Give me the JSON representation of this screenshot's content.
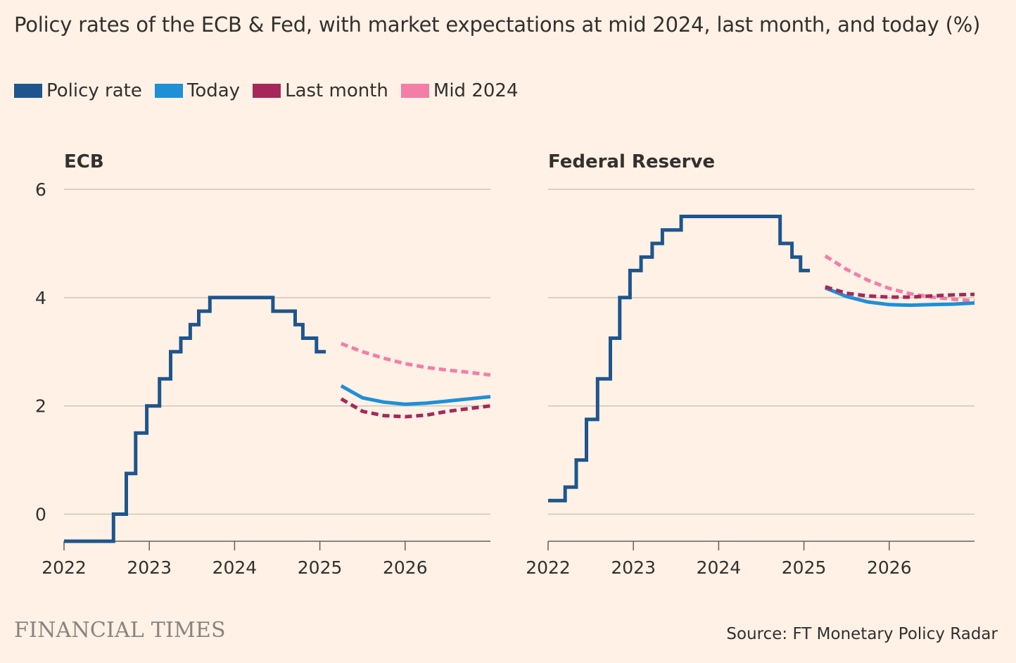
{
  "header": {
    "title": "Policy rates of the ECB & Fed, with market expectations at mid 2024, last month, and today (%)"
  },
  "legend": [
    {
      "label": "Policy rate",
      "color": "#1E558C"
    },
    {
      "label": "Today",
      "color": "#1F8FD6"
    },
    {
      "label": "Last month",
      "color": "#A62859"
    },
    {
      "label": "Mid 2024",
      "color": "#F37EA8"
    }
  ],
  "footer": {
    "brand": "FINANCIAL TIMES",
    "source": "Source: FT Monetary Policy Radar"
  },
  "chart_data": [
    {
      "type": "line",
      "title": "ECB",
      "xlim": [
        2022,
        2027
      ],
      "ylim": [
        -0.5,
        6
      ],
      "yticks": [
        0,
        2,
        4,
        6
      ],
      "xticks": [
        2022,
        2023,
        2024,
        2025,
        2026
      ],
      "series": [
        {
          "name": "Policy rate",
          "style": "step",
          "points": [
            [
              2022.0,
              -0.5
            ],
            [
              2022.58,
              -0.5
            ],
            [
              2022.58,
              0
            ],
            [
              2022.73,
              0
            ],
            [
              2022.73,
              0.75
            ],
            [
              2022.84,
              0.75
            ],
            [
              2022.84,
              1.5
            ],
            [
              2022.97,
              1.5
            ],
            [
              2022.97,
              2
            ],
            [
              2023.12,
              2
            ],
            [
              2023.12,
              2.5
            ],
            [
              2023.25,
              2.5
            ],
            [
              2023.25,
              3
            ],
            [
              2023.37,
              3
            ],
            [
              2023.37,
              3.25
            ],
            [
              2023.48,
              3.25
            ],
            [
              2023.48,
              3.5
            ],
            [
              2023.58,
              3.5
            ],
            [
              2023.58,
              3.75
            ],
            [
              2023.71,
              3.75
            ],
            [
              2023.71,
              4
            ],
            [
              2024.45,
              4
            ],
            [
              2024.45,
              3.75
            ],
            [
              2024.71,
              3.75
            ],
            [
              2024.71,
              3.5
            ],
            [
              2024.8,
              3.5
            ],
            [
              2024.8,
              3.25
            ],
            [
              2024.96,
              3.25
            ],
            [
              2024.96,
              3
            ],
            [
              2025.07,
              3
            ]
          ]
        },
        {
          "name": "Today",
          "style": "solid",
          "points": [
            [
              2025.25,
              2.37
            ],
            [
              2025.5,
              2.15
            ],
            [
              2025.75,
              2.07
            ],
            [
              2026.0,
              2.03
            ],
            [
              2026.25,
              2.05
            ],
            [
              2026.5,
              2.09
            ],
            [
              2026.75,
              2.13
            ],
            [
              2027.0,
              2.17
            ]
          ]
        },
        {
          "name": "Last month",
          "style": "dashed",
          "points": [
            [
              2025.25,
              2.13
            ],
            [
              2025.5,
              1.9
            ],
            [
              2025.75,
              1.82
            ],
            [
              2026.0,
              1.8
            ],
            [
              2026.25,
              1.83
            ],
            [
              2026.5,
              1.9
            ],
            [
              2026.75,
              1.95
            ],
            [
              2027.0,
              2.0
            ]
          ]
        },
        {
          "name": "Mid 2024",
          "style": "dashed",
          "points": [
            [
              2025.25,
              3.15
            ],
            [
              2025.5,
              3.0
            ],
            [
              2025.75,
              2.88
            ],
            [
              2026.0,
              2.78
            ],
            [
              2026.25,
              2.71
            ],
            [
              2026.5,
              2.66
            ],
            [
              2026.75,
              2.62
            ],
            [
              2027.0,
              2.57
            ]
          ]
        }
      ]
    },
    {
      "type": "line",
      "title": "Federal Reserve",
      "xlim": [
        2022,
        2027
      ],
      "ylim": [
        -0.5,
        6
      ],
      "yticks": [
        0,
        2,
        4,
        6
      ],
      "xticks": [
        2022,
        2023,
        2024,
        2025,
        2026
      ],
      "series": [
        {
          "name": "Policy rate",
          "style": "step",
          "points": [
            [
              2022.0,
              0.25
            ],
            [
              2022.2,
              0.25
            ],
            [
              2022.2,
              0.5
            ],
            [
              2022.33,
              0.5
            ],
            [
              2022.33,
              1
            ],
            [
              2022.45,
              1
            ],
            [
              2022.45,
              1.75
            ],
            [
              2022.58,
              1.75
            ],
            [
              2022.58,
              2.5
            ],
            [
              2022.73,
              2.5
            ],
            [
              2022.73,
              3.25
            ],
            [
              2022.84,
              3.25
            ],
            [
              2022.84,
              4
            ],
            [
              2022.96,
              4
            ],
            [
              2022.96,
              4.5
            ],
            [
              2023.09,
              4.5
            ],
            [
              2023.09,
              4.75
            ],
            [
              2023.22,
              4.75
            ],
            [
              2023.22,
              5
            ],
            [
              2023.34,
              5
            ],
            [
              2023.34,
              5.25
            ],
            [
              2023.56,
              5.25
            ],
            [
              2023.56,
              5.5
            ],
            [
              2024.72,
              5.5
            ],
            [
              2024.72,
              5
            ],
            [
              2024.86,
              5
            ],
            [
              2024.86,
              4.75
            ],
            [
              2024.96,
              4.75
            ],
            [
              2024.96,
              4.5
            ],
            [
              2025.07,
              4.5
            ]
          ]
        },
        {
          "name": "Today",
          "style": "solid",
          "points": [
            [
              2025.25,
              4.18
            ],
            [
              2025.5,
              4.02
            ],
            [
              2025.75,
              3.92
            ],
            [
              2026.0,
              3.87
            ],
            [
              2026.25,
              3.86
            ],
            [
              2026.5,
              3.87
            ],
            [
              2026.75,
              3.88
            ],
            [
              2027.0,
              3.9
            ]
          ]
        },
        {
          "name": "Last month",
          "style": "dashed",
          "points": [
            [
              2025.25,
              4.2
            ],
            [
              2025.5,
              4.08
            ],
            [
              2025.75,
              4.03
            ],
            [
              2026.0,
              4.01
            ],
            [
              2026.25,
              4.01
            ],
            [
              2026.5,
              4.03
            ],
            [
              2026.75,
              4.05
            ],
            [
              2027.0,
              4.06
            ]
          ]
        },
        {
          "name": "Mid 2024",
          "style": "dashed",
          "points": [
            [
              2025.25,
              4.77
            ],
            [
              2025.5,
              4.52
            ],
            [
              2025.75,
              4.32
            ],
            [
              2026.0,
              4.17
            ],
            [
              2026.25,
              4.07
            ],
            [
              2026.5,
              4.01
            ],
            [
              2026.75,
              3.97
            ],
            [
              2027.0,
              3.94
            ]
          ]
        }
      ]
    }
  ]
}
